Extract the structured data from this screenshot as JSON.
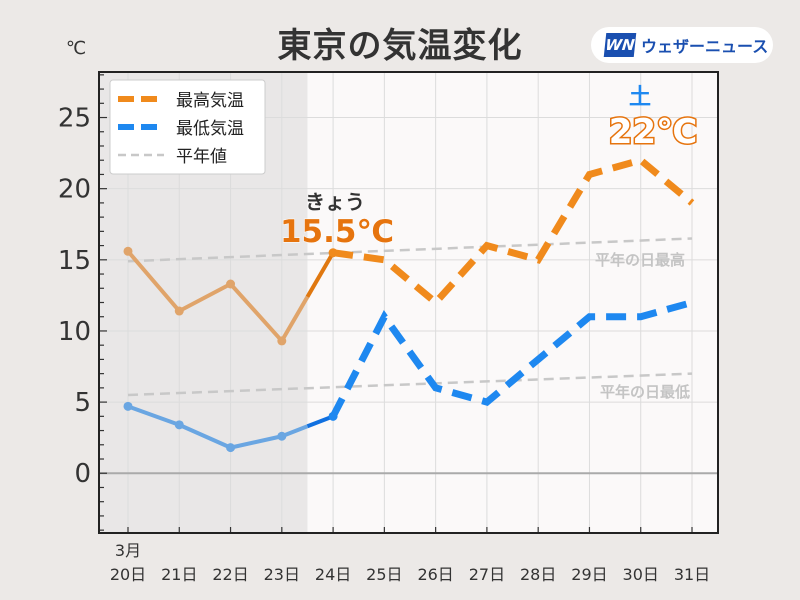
{
  "header": {
    "title": "東京の気温変化",
    "logo_mark": "WN",
    "logo_text": "ウェザーニュース"
  },
  "chart_data": {
    "type": "line",
    "title": "東京の気温変化",
    "ylabel": "℃",
    "ylim": [
      -4.2,
      28.2
    ],
    "yticks": [
      0,
      5,
      10,
      15,
      20,
      25
    ],
    "month_label": "3月",
    "categories": [
      "20日",
      "21日",
      "22日",
      "23日",
      "24日",
      "25日",
      "26日",
      "27日",
      "28日",
      "29日",
      "30日",
      "31日"
    ],
    "today_index": 4,
    "series": [
      {
        "name": "最高気温",
        "color": "#f08a1c",
        "past_color": "#e0a46a",
        "values": [
          15.6,
          11.4,
          13.3,
          9.3,
          15.5,
          15,
          12,
          16,
          15,
          21,
          22,
          19
        ]
      },
      {
        "name": "最低気温",
        "color": "#1e88f0",
        "past_color": "#6aa6e2",
        "values": [
          4.7,
          3.4,
          1.8,
          2.6,
          4,
          11,
          6,
          5,
          8,
          11,
          11,
          12
        ]
      },
      {
        "name": "平年値",
        "color": "#c8c8c8",
        "normal_max": [
          14.9,
          16.5
        ],
        "normal_min": [
          5.5,
          7.0
        ]
      }
    ],
    "legend_position": "top-left",
    "annotations": {
      "today_label": "きょう",
      "today_value": "15.5℃",
      "peak_day": "土",
      "peak_value": "22℃",
      "normal_max_label": "平年の日最高",
      "normal_min_label": "平年の日最低"
    }
  }
}
